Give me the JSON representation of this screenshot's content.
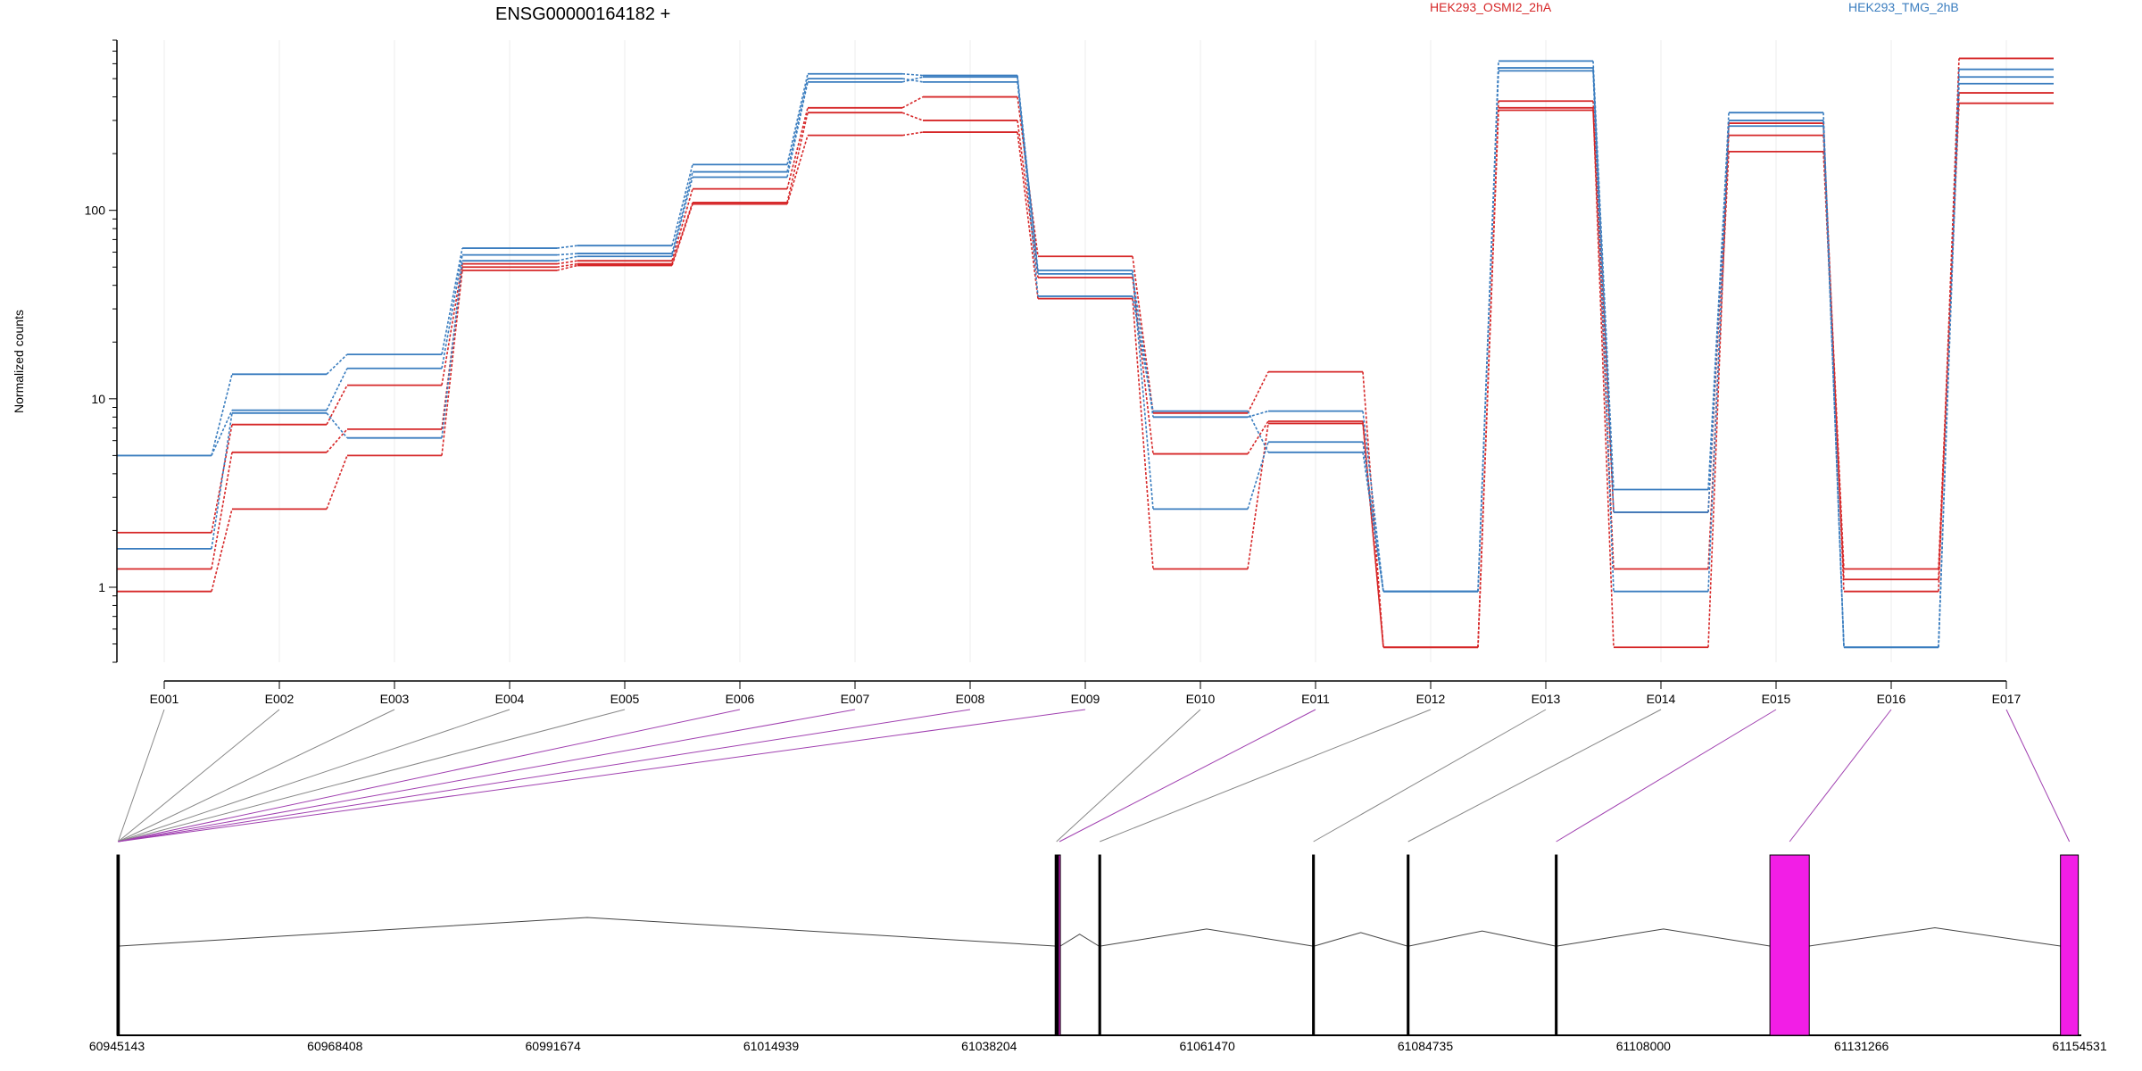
{
  "header": {
    "gene": "ENSG00000164182 +",
    "legend": [
      {
        "label": "HEK293_OSMI2_2hA",
        "color": "#d62728"
      },
      {
        "label": "HEK293_TMG_2hB",
        "color": "#3a7dbf"
      }
    ]
  },
  "colors": {
    "red": "#d62728",
    "blue": "#3a7dbf",
    "exon_highlight": "#f21ee6",
    "link_purple": "#a040b0",
    "link_gray": "#888888"
  },
  "chart_data": {
    "type": "line",
    "title": "ENSG00000164182 +",
    "ylabel": "Normalized counts",
    "yscale": "log",
    "ylim": [
      0.4,
      800
    ],
    "yticks": [
      1,
      10,
      100
    ],
    "categories": [
      "E001",
      "E002",
      "E003",
      "E004",
      "E005",
      "E006",
      "E007",
      "E008",
      "E009",
      "E010",
      "E011",
      "E012",
      "E013",
      "E014",
      "E015",
      "E016",
      "E017"
    ],
    "series": [
      {
        "color": "#d62728",
        "dashed_gaps": [
          4,
          7
        ],
        "values": [
          1.95,
          7.3,
          11.8,
          52,
          54,
          130,
          350,
          400,
          57,
          8.4,
          13.9,
          0.48,
          380,
          2.5,
          250,
          1.25,
          420
        ]
      },
      {
        "color": "#d62728",
        "dashed_gaps": [
          4,
          7
        ],
        "values": [
          1.25,
          5.2,
          6.9,
          50,
          52,
          110,
          330,
          300,
          44,
          5.1,
          7.6,
          0.48,
          340,
          1.25,
          205,
          1.1,
          370
        ]
      },
      {
        "color": "#d62728",
        "dashed_gaps": [
          4,
          7
        ],
        "values": [
          0.95,
          2.6,
          5.0,
          48,
          51,
          108,
          250,
          260,
          34,
          1.25,
          7.4,
          0.48,
          350,
          0.48,
          290,
          0.95,
          640
        ]
      },
      {
        "color": "#3a7dbf",
        "dashed_gaps": [
          4,
          7
        ],
        "values": [
          5.0,
          13.5,
          17.2,
          63,
          65,
          175,
          530,
          520,
          46,
          8.0,
          8.6,
          0.95,
          620,
          3.3,
          300,
          0.48,
          510
        ]
      },
      {
        "color": "#3a7dbf",
        "dashed_gaps": [
          4,
          7
        ],
        "values": [
          5.0,
          8.7,
          14.5,
          58,
          59,
          160,
          500,
          480,
          48,
          2.6,
          5.9,
          0.95,
          550,
          0.95,
          280,
          0.48,
          470
        ]
      },
      {
        "color": "#3a7dbf",
        "dashed_gaps": [
          4,
          7
        ],
        "values": [
          1.6,
          8.4,
          6.2,
          54,
          57,
          150,
          480,
          510,
          35,
          8.6,
          5.2,
          0.95,
          570,
          2.5,
          330,
          0.48,
          560
        ]
      }
    ],
    "genome": {
      "ticks": [
        "60945143",
        "60968408",
        "60991674",
        "61014939",
        "61038204",
        "61061470",
        "61084735",
        "61108000",
        "61131266",
        "61154531"
      ],
      "range": [
        60945143,
        61154531
      ],
      "exons": [
        {
          "id": "E001",
          "start": 60945143,
          "end": 60945400,
          "fill": "#000000"
        },
        {
          "id": "E002",
          "start": 60945143,
          "end": 60945400,
          "fill": "#000000"
        },
        {
          "id": "E003",
          "start": 60945143,
          "end": 60945400,
          "fill": "#000000"
        },
        {
          "id": "E004",
          "start": 60945143,
          "end": 60945400,
          "fill": "#000000"
        },
        {
          "id": "E005",
          "start": 60945143,
          "end": 60945400,
          "fill": "#000000"
        },
        {
          "id": "E006",
          "start": 60945143,
          "end": 60945400,
          "fill": "#000000"
        },
        {
          "id": "E007",
          "start": 60945143,
          "end": 60945400,
          "fill": "#000000"
        },
        {
          "id": "E008",
          "start": 60945143,
          "end": 60945400,
          "fill": "#000000"
        },
        {
          "id": "E009",
          "start": 60945143,
          "end": 60945400,
          "fill": "#000000"
        },
        {
          "id": "E010",
          "start": 61045240,
          "end": 61045520,
          "fill": "#000000"
        },
        {
          "id": "E011",
          "start": 61045600,
          "end": 61045800,
          "fill": "#f21ee6"
        },
        {
          "id": "E012",
          "start": 61049900,
          "end": 61050100,
          "fill": "#000000"
        },
        {
          "id": "E013",
          "start": 61072700,
          "end": 61072900,
          "fill": "#000000"
        },
        {
          "id": "E014",
          "start": 61082800,
          "end": 61083000,
          "fill": "#000000"
        },
        {
          "id": "E015",
          "start": 61098600,
          "end": 61098800,
          "fill": "#000000"
        },
        {
          "id": "E016",
          "start": 61121500,
          "end": 61125700,
          "fill": "#f21ee6"
        },
        {
          "id": "E017",
          "start": 61152500,
          "end": 61154400,
          "fill": "#f21ee6"
        }
      ],
      "links": [
        {
          "exon": "E001",
          "color": "#888888"
        },
        {
          "exon": "E002",
          "color": "#888888"
        },
        {
          "exon": "E003",
          "color": "#888888"
        },
        {
          "exon": "E004",
          "color": "#888888"
        },
        {
          "exon": "E005",
          "color": "#888888"
        },
        {
          "exon": "E006",
          "color": "#a040b0"
        },
        {
          "exon": "E007",
          "color": "#a040b0"
        },
        {
          "exon": "E008",
          "color": "#a040b0"
        },
        {
          "exon": "E009",
          "color": "#a040b0"
        },
        {
          "exon": "E010",
          "color": "#888888"
        },
        {
          "exon": "E011",
          "color": "#a040b0"
        },
        {
          "exon": "E012",
          "color": "#888888"
        },
        {
          "exon": "E013",
          "color": "#888888"
        },
        {
          "exon": "E014",
          "color": "#888888"
        },
        {
          "exon": "E015",
          "color": "#a040b0"
        },
        {
          "exon": "E016",
          "color": "#a040b0"
        },
        {
          "exon": "E017",
          "color": "#a040b0"
        }
      ]
    }
  }
}
